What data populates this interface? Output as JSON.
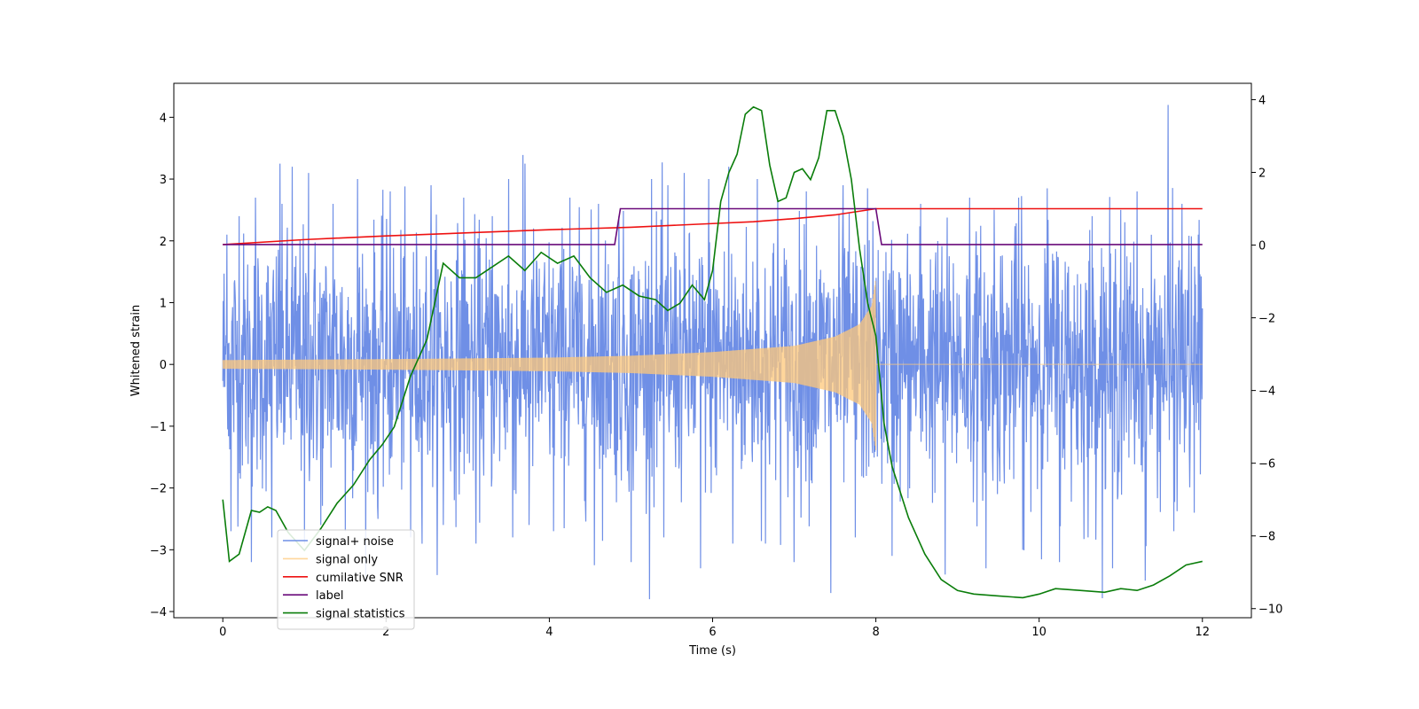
{
  "chart_data": {
    "type": "line",
    "title": "",
    "xlabel": "Time (s)",
    "ylabel": "Whitened strain",
    "xlim": [
      -0.6,
      12.6
    ],
    "ylim": [
      -4.1,
      4.55
    ],
    "y2lim": [
      -10.25,
      4.45
    ],
    "x_ticks": [
      0,
      2,
      4,
      6,
      8,
      10,
      12
    ],
    "y_ticks": [
      -4,
      -3,
      -2,
      -1,
      0,
      1,
      2,
      3,
      4
    ],
    "y2_ticks": [
      -10,
      -8,
      -6,
      -4,
      -2,
      0,
      2,
      4
    ],
    "grid": false,
    "legend_position": "lower-left",
    "series": [
      {
        "name": "signal+ noise",
        "axis": "left",
        "color": "#6f8fe6",
        "kind": "noise",
        "x_range": [
          0,
          12
        ],
        "center": 0.05,
        "typical_amplitude": 1.2,
        "spikes_positive": [
          [
            0.05,
            2.1
          ],
          [
            0.2,
            2.4
          ],
          [
            0.4,
            2.7
          ],
          [
            0.7,
            3.25
          ],
          [
            0.85,
            3.2
          ],
          [
            1.05,
            3.1
          ],
          [
            1.35,
            2.6
          ],
          [
            1.65,
            3.0
          ],
          [
            2.05,
            2.8
          ],
          [
            2.55,
            2.9
          ],
          [
            2.95,
            2.7
          ],
          [
            3.3,
            2.4
          ],
          [
            3.5,
            3.0
          ],
          [
            3.7,
            3.25
          ],
          [
            4.25,
            2.7
          ],
          [
            4.6,
            2.6
          ],
          [
            4.85,
            2.4
          ],
          [
            5.25,
            3.0
          ],
          [
            5.45,
            2.9
          ],
          [
            5.65,
            3.1
          ],
          [
            5.95,
            3.0
          ],
          [
            6.2,
            3.2
          ],
          [
            6.55,
            3.0
          ],
          [
            6.8,
            2.7
          ],
          [
            7.15,
            2.8
          ],
          [
            7.6,
            2.9
          ],
          [
            7.9,
            2.85
          ],
          [
            8.2,
            2.7
          ],
          [
            8.55,
            2.6
          ],
          [
            9.15,
            2.7
          ],
          [
            9.45,
            2.5
          ],
          [
            9.75,
            2.7
          ],
          [
            10.1,
            2.85
          ],
          [
            10.65,
            2.4
          ],
          [
            11.0,
            2.5
          ],
          [
            11.2,
            2.8
          ],
          [
            11.58,
            4.2
          ],
          [
            11.75,
            2.6
          ],
          [
            11.95,
            2.1
          ]
        ],
        "spikes_negative": [
          [
            0.1,
            -2.7
          ],
          [
            0.35,
            -3.2
          ],
          [
            0.6,
            -2.8
          ],
          [
            1.0,
            -2.9
          ],
          [
            1.2,
            -2.6
          ],
          [
            1.5,
            -2.7
          ],
          [
            1.9,
            -2.5
          ],
          [
            2.3,
            -2.8
          ],
          [
            2.7,
            -2.6
          ],
          [
            3.1,
            -2.9
          ],
          [
            3.55,
            -2.8
          ],
          [
            3.75,
            -2.6
          ],
          [
            4.05,
            -2.7
          ],
          [
            4.55,
            -3.25
          ],
          [
            5.0,
            -3.2
          ],
          [
            5.4,
            -2.8
          ],
          [
            5.85,
            -3.3
          ],
          [
            6.25,
            -2.9
          ],
          [
            6.65,
            -2.9
          ],
          [
            7.0,
            -3.2
          ],
          [
            7.45,
            -3.7
          ],
          [
            7.75,
            -2.8
          ],
          [
            8.2,
            -3.1
          ],
          [
            8.85,
            -3.4
          ],
          [
            9.35,
            -3.3
          ],
          [
            9.8,
            -3.0
          ],
          [
            10.25,
            -3.2
          ],
          [
            10.6,
            -2.8
          ],
          [
            10.9,
            -3.3
          ],
          [
            11.3,
            -3.5
          ],
          [
            11.65,
            -2.7
          ],
          [
            11.9,
            -2.4
          ]
        ]
      },
      {
        "name": "signal only",
        "axis": "left",
        "color": "#ffc87a",
        "kind": "chirp",
        "x_range": [
          0,
          12
        ],
        "merger_time": 8.0,
        "envelope_points": [
          [
            0,
            0.07
          ],
          [
            2,
            0.085
          ],
          [
            4,
            0.11
          ],
          [
            5,
            0.14
          ],
          [
            6,
            0.2
          ],
          [
            7,
            0.3
          ],
          [
            7.5,
            0.45
          ],
          [
            7.8,
            0.65
          ],
          [
            7.95,
            0.95
          ],
          [
            8.0,
            1.4
          ]
        ],
        "post_merger_value": 0.0
      },
      {
        "name": "cumilative SNR",
        "axis": "left",
        "color": "#ee1111",
        "x": [
          0,
          1,
          2,
          3,
          4,
          5,
          6,
          6.5,
          7,
          7.5,
          8,
          8.01,
          12
        ],
        "y": [
          1.94,
          2.02,
          2.08,
          2.13,
          2.18,
          2.22,
          2.28,
          2.31,
          2.36,
          2.42,
          2.52,
          2.52,
          2.52
        ]
      },
      {
        "name": "label",
        "axis": "left",
        "color": "#6a0a7a",
        "x": [
          0,
          4.8,
          4.87,
          8.0,
          8.07,
          12
        ],
        "y": [
          1.94,
          1.94,
          2.52,
          2.52,
          1.94,
          1.94
        ]
      },
      {
        "name": "signal statistics",
        "axis": "right",
        "color": "#0a7d0a",
        "x": [
          0,
          0.08,
          0.2,
          0.35,
          0.45,
          0.55,
          0.65,
          0.8,
          1.0,
          1.2,
          1.4,
          1.6,
          1.8,
          1.95,
          2.1,
          2.3,
          2.5,
          2.7,
          2.9,
          3.1,
          3.3,
          3.5,
          3.7,
          3.9,
          4.1,
          4.3,
          4.5,
          4.7,
          4.9,
          5.1,
          5.3,
          5.45,
          5.6,
          5.75,
          5.9,
          6.0,
          6.1,
          6.2,
          6.3,
          6.4,
          6.5,
          6.6,
          6.7,
          6.8,
          6.9,
          7.0,
          7.1,
          7.2,
          7.3,
          7.4,
          7.5,
          7.6,
          7.7,
          7.8,
          7.9,
          8.0,
          8.1,
          8.2,
          8.4,
          8.6,
          8.8,
          9.0,
          9.2,
          9.5,
          9.8,
          10.0,
          10.2,
          10.5,
          10.8,
          11.0,
          11.2,
          11.4,
          11.6,
          11.8,
          12.0
        ],
        "y": [
          -7.0,
          -8.7,
          -8.5,
          -7.3,
          -7.35,
          -7.2,
          -7.3,
          -7.9,
          -8.4,
          -7.8,
          -7.1,
          -6.6,
          -5.9,
          -5.5,
          -5.0,
          -3.6,
          -2.6,
          -0.5,
          -0.9,
          -0.9,
          -0.6,
          -0.3,
          -0.7,
          -0.2,
          -0.5,
          -0.3,
          -0.9,
          -1.3,
          -1.1,
          -1.4,
          -1.5,
          -1.8,
          -1.6,
          -1.1,
          -1.5,
          -0.7,
          1.2,
          2.0,
          2.5,
          3.6,
          3.8,
          3.7,
          2.2,
          1.2,
          1.3,
          2.0,
          2.1,
          1.8,
          2.4,
          3.7,
          3.7,
          3.0,
          1.8,
          -0.1,
          -1.6,
          -2.5,
          -4.9,
          -6.1,
          -7.5,
          -8.5,
          -9.2,
          -9.5,
          -9.6,
          -9.65,
          -9.7,
          -9.6,
          -9.45,
          -9.5,
          -9.55,
          -9.45,
          -9.5,
          -9.35,
          -9.1,
          -8.8,
          -8.7
        ]
      }
    ]
  }
}
